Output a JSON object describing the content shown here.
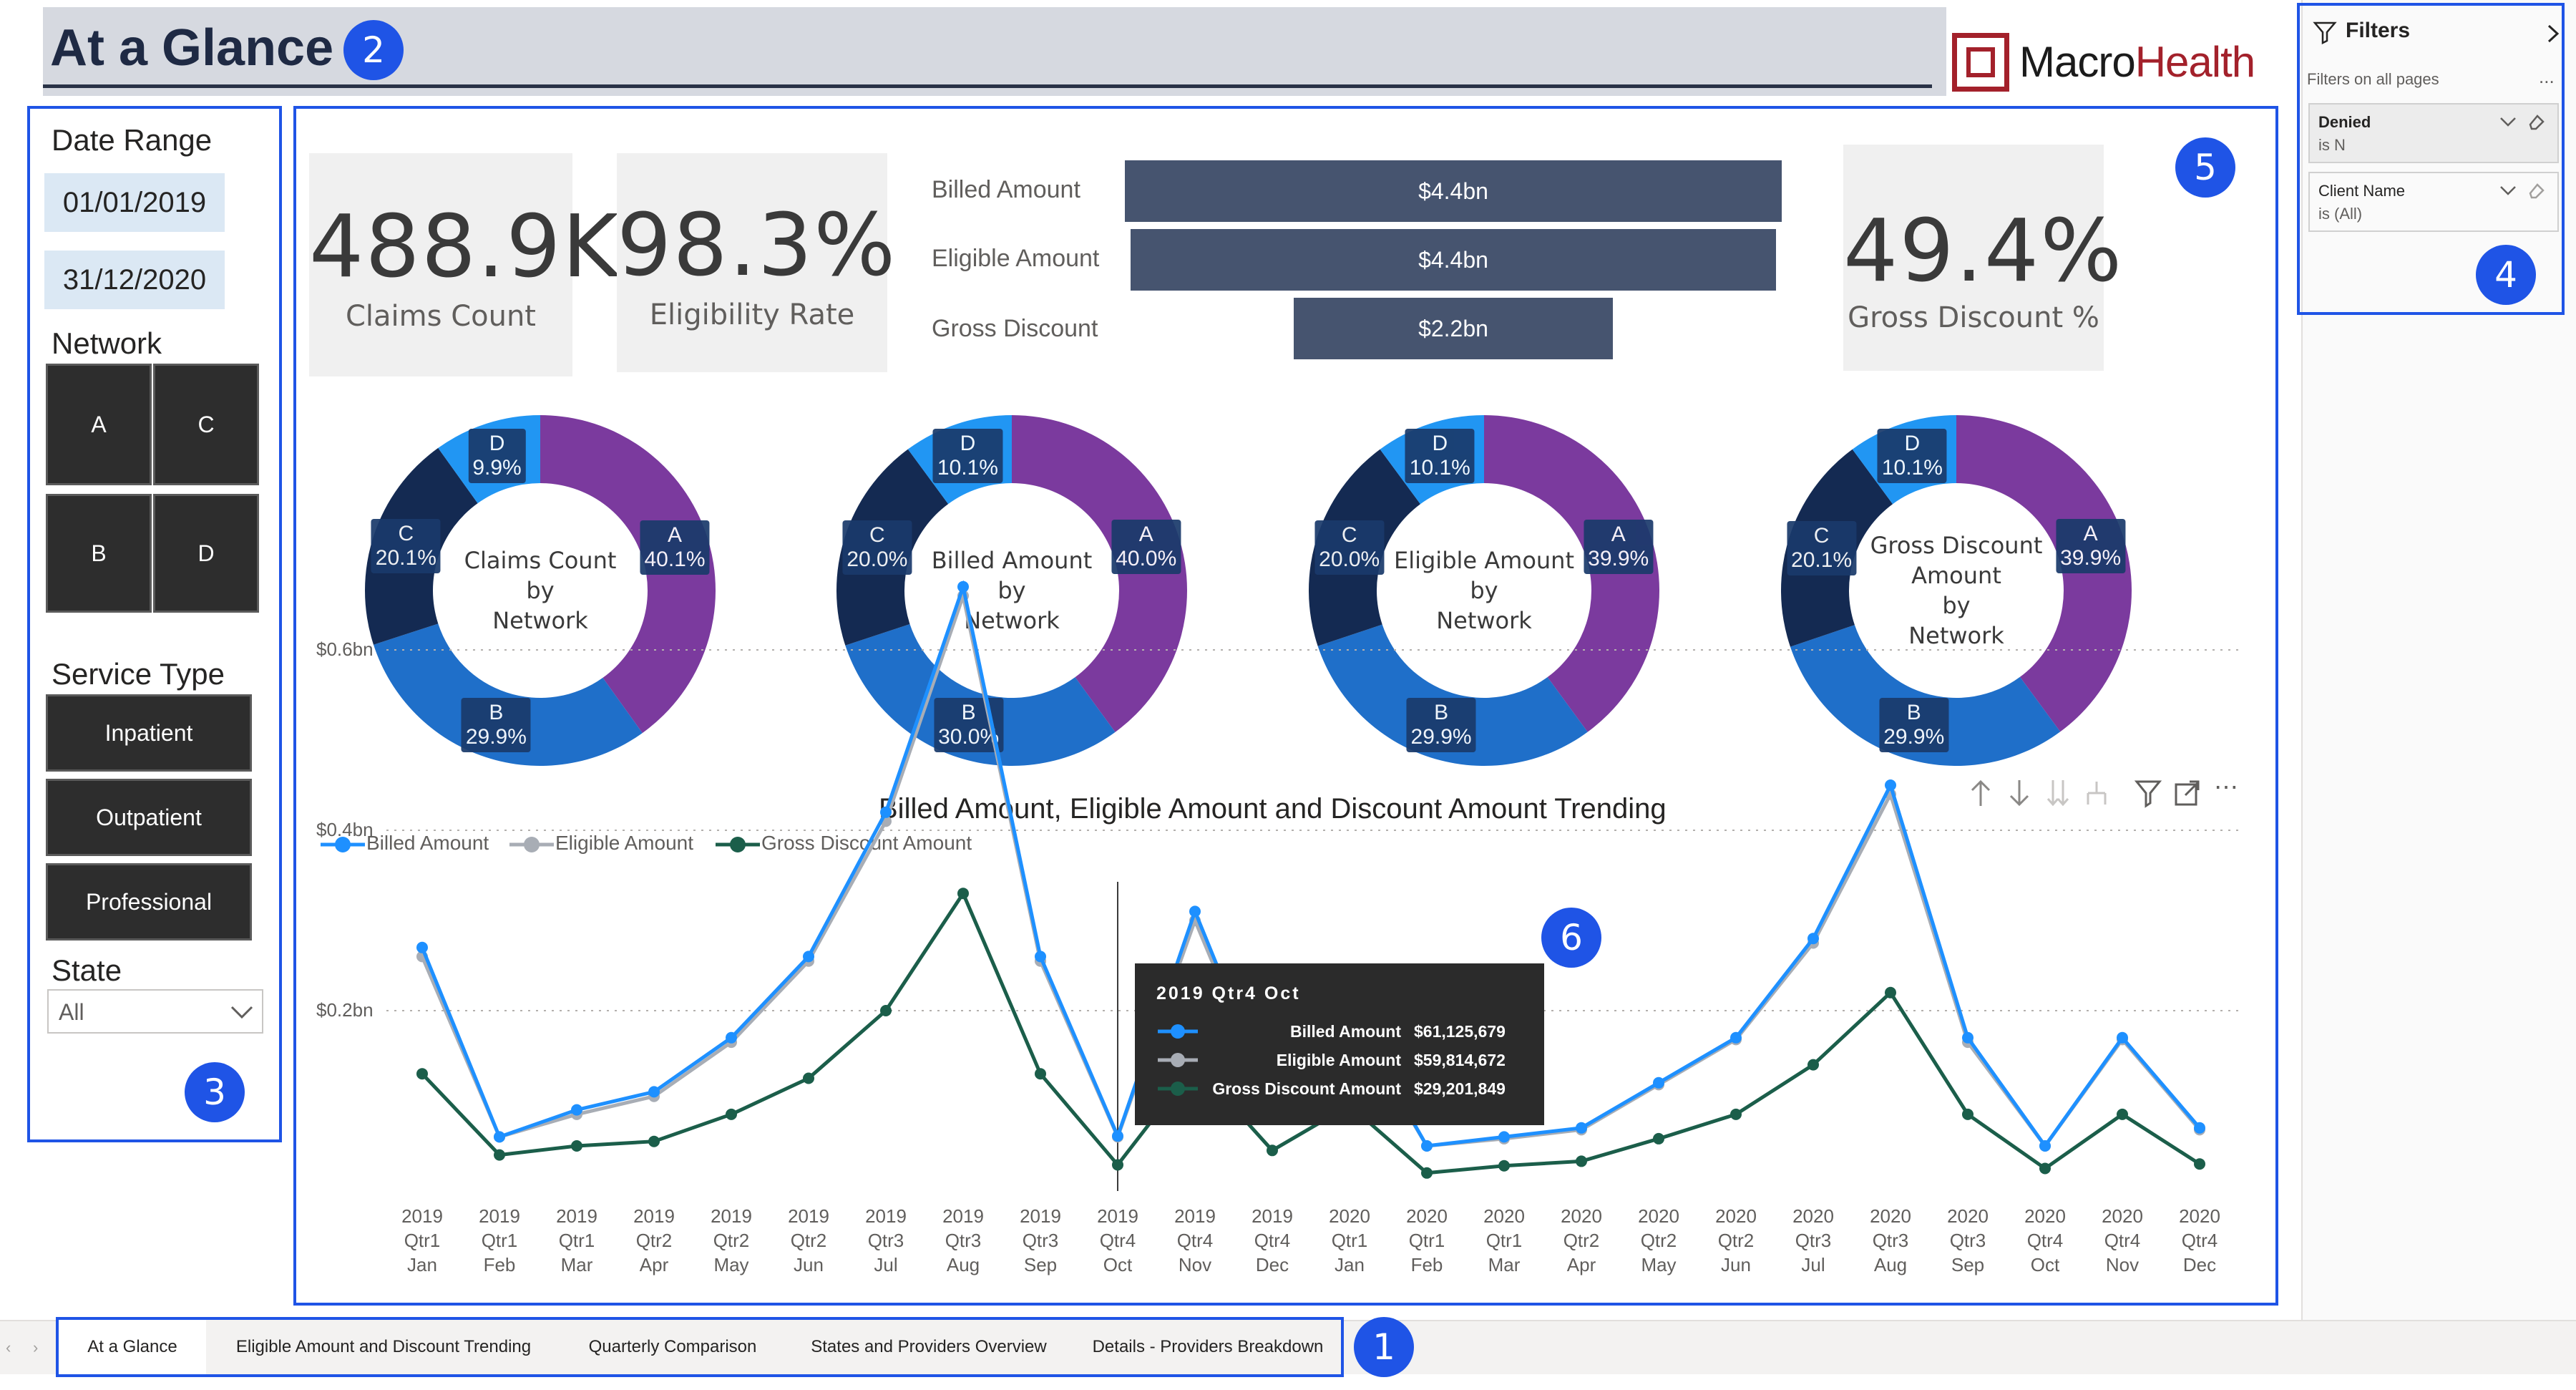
{
  "header": {
    "title": "At a Glance",
    "logo_text_macro": "Macro",
    "logo_text_health": "Health",
    "brand_color": "#a3212b"
  },
  "callouts": [
    "1",
    "2",
    "3",
    "4",
    "5",
    "6"
  ],
  "slicers": {
    "date_range": {
      "title": "Date Range",
      "start": "01/01/2019",
      "end": "31/12/2020"
    },
    "network": {
      "title": "Network",
      "options": [
        "A",
        "C",
        "B",
        "D"
      ]
    },
    "service_type": {
      "title": "Service Type",
      "options": [
        "Inpatient",
        "Outpatient",
        "Professional"
      ]
    },
    "state": {
      "title": "State",
      "selected": "All"
    }
  },
  "kpis": {
    "claims_count": {
      "value": "488.9K",
      "label": "Claims Count"
    },
    "eligibility_rate": {
      "value": "98.3%",
      "label": "Eligibility Rate"
    },
    "gross_discount_pct": {
      "value": "49.4%",
      "label": "Gross Discount %"
    }
  },
  "funnel": [
    {
      "label": "Billed Amount",
      "value": "$4.4bn",
      "amount_bn": 4.4
    },
    {
      "label": "Eligible Amount",
      "value": "$4.4bn",
      "amount_bn": 4.4
    },
    {
      "label": "Gross Discount",
      "value": "$2.2bn",
      "amount_bn": 2.2
    }
  ],
  "donuts": [
    {
      "title": [
        "Claims Count",
        "by",
        "Network"
      ],
      "slices": [
        {
          "name": "A",
          "pct": 40.1,
          "label": "40.1%"
        },
        {
          "name": "B",
          "pct": 29.9,
          "label": "29.9%"
        },
        {
          "name": "C",
          "pct": 20.1,
          "label": "20.1%"
        },
        {
          "name": "D",
          "pct": 9.9,
          "label": "9.9%"
        }
      ]
    },
    {
      "title": [
        "Billed Amount",
        "by",
        "Network"
      ],
      "slices": [
        {
          "name": "A",
          "pct": 40.0,
          "label": "40.0%"
        },
        {
          "name": "B",
          "pct": 30.0,
          "label": "30.0%"
        },
        {
          "name": "C",
          "pct": 20.0,
          "label": "20.0%"
        },
        {
          "name": "D",
          "pct": 10.1,
          "label": "10.1%"
        }
      ]
    },
    {
      "title": [
        "Eligible Amount",
        "by",
        "Network"
      ],
      "slices": [
        {
          "name": "A",
          "pct": 39.9,
          "label": "39.9%"
        },
        {
          "name": "B",
          "pct": 29.9,
          "label": "29.9%"
        },
        {
          "name": "C",
          "pct": 20.0,
          "label": "20.0%"
        },
        {
          "name": "D",
          "pct": 10.1,
          "label": "10.1%"
        }
      ]
    },
    {
      "title": [
        "Gross Discount",
        "Amount",
        "by",
        "Network"
      ],
      "slices": [
        {
          "name": "A",
          "pct": 39.9,
          "label": "39.9%"
        },
        {
          "name": "B",
          "pct": 29.9,
          "label": "29.9%"
        },
        {
          "name": "C",
          "pct": 20.1,
          "label": "20.1%"
        },
        {
          "name": "D",
          "pct": 10.1,
          "label": "10.1%"
        }
      ]
    }
  ],
  "donut_colors": {
    "A": "#7b3a9e",
    "B": "#1f6fc9",
    "C": "#142a52",
    "D": "#2196f3"
  },
  "chart_data": {
    "type": "line",
    "title": "Billed Amount, Eligible Amount and Discount Amount Trending",
    "x": [
      "2019 Qtr1 Jan",
      "2019 Qtr1 Feb",
      "2019 Qtr1 Mar",
      "2019 Qtr2 Apr",
      "2019 Qtr2 May",
      "2019 Qtr2 Jun",
      "2019 Qtr3 Jul",
      "2019 Qtr3 Aug",
      "2019 Qtr3 Sep",
      "2019 Qtr4 Oct",
      "2019 Qtr4 Nov",
      "2019 Qtr4 Dec",
      "2020 Qtr1 Jan",
      "2020 Qtr1 Feb",
      "2020 Qtr1 Mar",
      "2020 Qtr2 Apr",
      "2020 Qtr2 May",
      "2020 Qtr2 Jun",
      "2020 Qtr3 Jul",
      "2020 Qtr3 Aug",
      "2020 Qtr3 Sep",
      "2020 Qtr4 Oct",
      "2020 Qtr4 Nov",
      "2020 Qtr4 Dec"
    ],
    "series": [
      {
        "name": "Billed Amount",
        "color": "#1e90ff",
        "values": [
          0.27,
          0.06,
          0.09,
          0.11,
          0.17,
          0.26,
          0.42,
          0.67,
          0.26,
          0.061,
          0.31,
          0.1,
          0.2,
          0.05,
          0.06,
          0.07,
          0.12,
          0.17,
          0.28,
          0.45,
          0.17,
          0.05,
          0.17,
          0.07
        ]
      },
      {
        "name": "Eligible Amount",
        "color": "#a8adb5",
        "values": [
          0.26,
          0.06,
          0.085,
          0.105,
          0.165,
          0.255,
          0.41,
          0.66,
          0.255,
          0.06,
          0.3,
          0.095,
          0.195,
          0.05,
          0.058,
          0.068,
          0.118,
          0.168,
          0.275,
          0.44,
          0.165,
          0.05,
          0.168,
          0.068
        ]
      },
      {
        "name": "Gross Discount Amount",
        "color": "#1b5e4a",
        "values": [
          0.13,
          0.04,
          0.05,
          0.055,
          0.085,
          0.125,
          0.2,
          0.33,
          0.13,
          0.029,
          0.14,
          0.045,
          0.095,
          0.02,
          0.028,
          0.033,
          0.058,
          0.085,
          0.14,
          0.22,
          0.085,
          0.025,
          0.085,
          0.03
        ]
      }
    ],
    "yticks": [
      "$0.2bn",
      "$0.4bn",
      "$0.6bn"
    ],
    "ytick_values": [
      0.2,
      0.4,
      0.6
    ],
    "ylim": [
      0,
      0.7
    ],
    "grid": true,
    "legend_placement": "top-left",
    "tooltip": {
      "title": "2019 Qtr4 Oct",
      "rows": [
        {
          "name": "Billed Amount",
          "value": "$61,125,679"
        },
        {
          "name": "Eligible Amount",
          "value": "$59,814,672"
        },
        {
          "name": "Gross Discount Amount",
          "value": "$29,201,849"
        }
      ]
    }
  },
  "filters_pane": {
    "title": "Filters",
    "subtitle": "Filters on all pages",
    "more": "...",
    "cards": [
      {
        "name": "Denied",
        "state": "is N"
      },
      {
        "name": "Client Name",
        "state": "is (All)"
      }
    ]
  },
  "tabs": [
    "At a Glance",
    "Eligible Amount and Discount Trending",
    "Quarterly Comparison",
    "States and Providers Overview",
    "Details - Providers Breakdown"
  ]
}
